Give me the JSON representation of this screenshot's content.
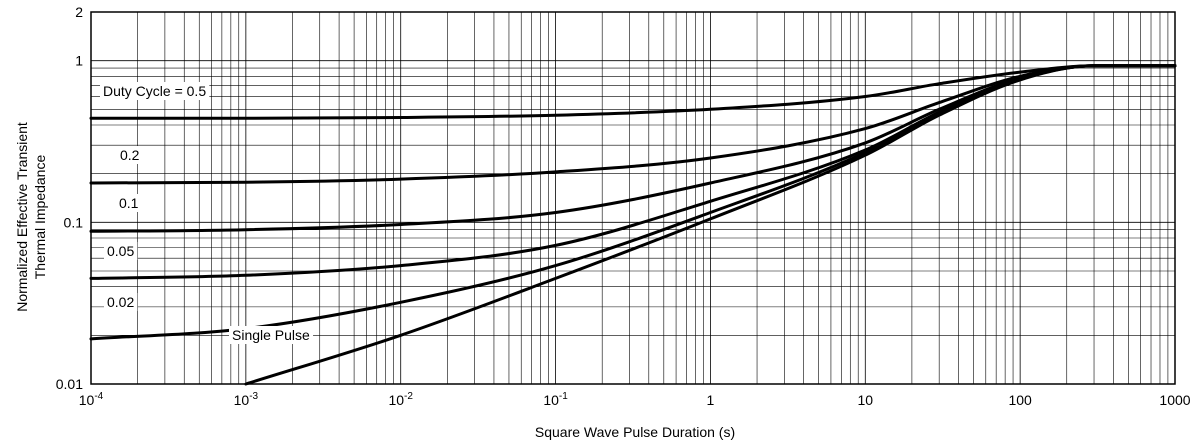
{
  "chart_data": {
    "type": "line",
    "xscale": "log",
    "yscale": "log",
    "xlim": [
      0.0001,
      1000
    ],
    "ylim": [
      0.01,
      2
    ],
    "grid": true,
    "xlabel": "Square Wave Pulse Duration (s)",
    "ylabel_line1": "Normalized Effective Transient",
    "ylabel_line2": "Thermal Impedance",
    "x_ticks": [
      {
        "value": 0.0001,
        "base": "10",
        "exp": "-4"
      },
      {
        "value": 0.001,
        "base": "10",
        "exp": "-3"
      },
      {
        "value": 0.01,
        "base": "10",
        "exp": "-2"
      },
      {
        "value": 0.1,
        "base": "10",
        "exp": "-1"
      },
      {
        "value": 1,
        "base": "1",
        "exp": ""
      },
      {
        "value": 10,
        "base": "10",
        "exp": ""
      },
      {
        "value": 100,
        "base": "100",
        "exp": ""
      },
      {
        "value": 1000,
        "base": "1000",
        "exp": ""
      }
    ],
    "y_ticks": [
      {
        "value": 0.01,
        "label": "0.01"
      },
      {
        "value": 0.1,
        "label": "0.1"
      },
      {
        "value": 1,
        "label": "1"
      },
      {
        "value": 2,
        "label": "2"
      }
    ],
    "series": [
      {
        "name": "Duty Cycle = 0.5",
        "x": [
          0.0001,
          0.001,
          0.01,
          0.1,
          1,
          10,
          30,
          100,
          300,
          1000
        ],
        "y": [
          0.44,
          0.44,
          0.445,
          0.46,
          0.5,
          0.6,
          0.72,
          0.85,
          0.93,
          0.93
        ]
      },
      {
        "name": "0.2",
        "x": [
          0.0001,
          0.001,
          0.01,
          0.1,
          1,
          10,
          30,
          100,
          300,
          1000
        ],
        "y": [
          0.175,
          0.177,
          0.185,
          0.205,
          0.25,
          0.38,
          0.55,
          0.8,
          0.93,
          0.93
        ]
      },
      {
        "name": "0.1",
        "x": [
          0.0001,
          0.001,
          0.01,
          0.1,
          1,
          10,
          30,
          100,
          300,
          1000
        ],
        "y": [
          0.088,
          0.09,
          0.097,
          0.115,
          0.175,
          0.31,
          0.5,
          0.78,
          0.93,
          0.93
        ]
      },
      {
        "name": "0.05",
        "x": [
          0.0001,
          0.001,
          0.01,
          0.1,
          1,
          10,
          30,
          100,
          300,
          1000
        ],
        "y": [
          0.045,
          0.047,
          0.054,
          0.072,
          0.135,
          0.28,
          0.48,
          0.77,
          0.93,
          0.93
        ]
      },
      {
        "name": "0.02",
        "x": [
          0.0001,
          0.001,
          0.01,
          0.1,
          1,
          10,
          30,
          100,
          300,
          1000
        ],
        "y": [
          0.019,
          0.022,
          0.032,
          0.054,
          0.115,
          0.27,
          0.47,
          0.77,
          0.93,
          0.93
        ]
      },
      {
        "name": "Single Pulse",
        "x": [
          0.001,
          0.01,
          0.1,
          1,
          10,
          30,
          100,
          300,
          1000
        ],
        "y": [
          0.01,
          0.02,
          0.045,
          0.105,
          0.26,
          0.46,
          0.76,
          0.93,
          0.93
        ]
      }
    ]
  }
}
